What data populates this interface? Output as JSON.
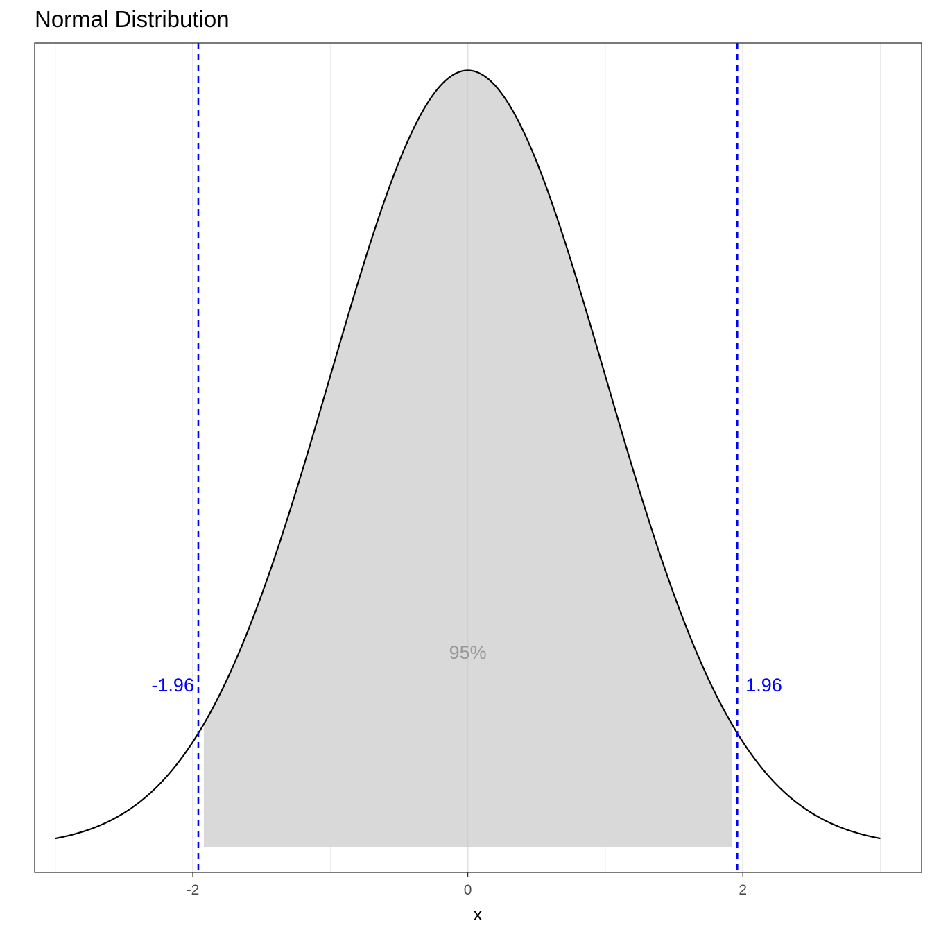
{
  "chart_data": {
    "type": "area",
    "title": "Normal Distribution",
    "xlabel": "x",
    "ylabel": "",
    "xlim": [
      -3.15,
      3.3
    ],
    "ylim": [
      -0.013,
      0.413
    ],
    "x_ticks": [
      -2,
      0,
      2
    ],
    "x_tick_labels": [
      "-2",
      "0",
      "2"
    ],
    "grid": true,
    "curve": {
      "distribution": "normal",
      "mean": 0,
      "sd": 1,
      "x_range": [
        -3,
        3
      ]
    },
    "shaded_region": {
      "x_range": [
        -1.92,
        1.92
      ],
      "fill": "#d9d9d9"
    },
    "reference_lines": [
      {
        "x": -1.96,
        "label": "-1.96",
        "color": "#0000ff",
        "style": "dashed"
      },
      {
        "x": 1.96,
        "label": "1.96",
        "color": "#0000ff",
        "style": "dashed"
      }
    ],
    "annotations": [
      {
        "text": "95%",
        "x": 0,
        "y": 0.1,
        "color": "#999999"
      }
    ]
  }
}
